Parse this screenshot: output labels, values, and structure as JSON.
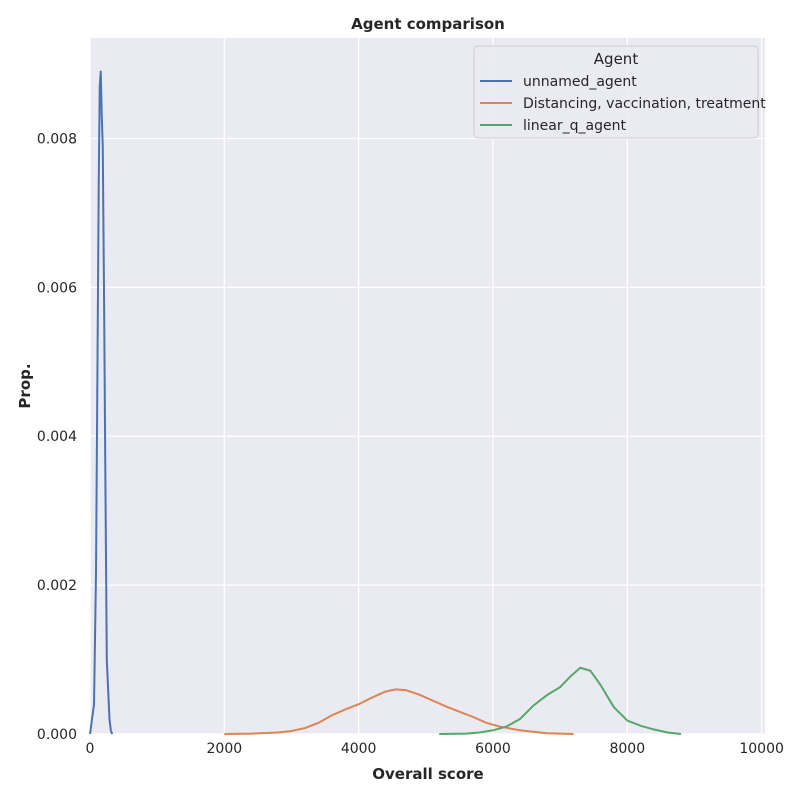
{
  "chart_data": {
    "type": "line",
    "title": "Agent comparison",
    "xlabel": "Overall score",
    "ylabel": "Prop.",
    "xlim": [
      0,
      10050
    ],
    "ylim": [
      0,
      0.00935
    ],
    "x_ticks": [
      0,
      2000,
      4000,
      6000,
      8000,
      10000
    ],
    "x_tick_labels": [
      "0",
      "2000",
      "4000",
      "6000",
      "8000",
      "10000"
    ],
    "y_ticks": [
      0,
      0.002,
      0.004,
      0.006,
      0.008
    ],
    "y_tick_labels": [
      "0.000",
      "0.002",
      "0.004",
      "0.006",
      "0.008"
    ],
    "grid": true,
    "background": "#eaeaf2",
    "legend": {
      "title": "Agent",
      "placement": "top-right"
    },
    "series": [
      {
        "name": "unnamed_agent",
        "color": "#4c72b0",
        "x": [
          0,
          30,
          60,
          90,
          110,
          130,
          145,
          160,
          175,
          190,
          210,
          230,
          250,
          270,
          290,
          310,
          330
        ],
        "y": [
          0,
          0.0002,
          0.0004,
          0.0022,
          0.0048,
          0.0074,
          0.0087,
          0.0089,
          0.0083,
          0.0079,
          0.0058,
          0.0033,
          0.001,
          0.0006,
          0.0002,
          5e-05,
          0
        ]
      },
      {
        "name": "Distancing, vaccination, treatment",
        "color": "#dd8452",
        "x": [
          2000,
          2400,
          2800,
          3000,
          3200,
          3400,
          3600,
          3800,
          4000,
          4200,
          4400,
          4550,
          4700,
          4900,
          5100,
          5300,
          5500,
          5700,
          5900,
          6100,
          6400,
          6800,
          7200
        ],
        "y": [
          0,
          5e-06,
          2e-05,
          4e-05,
          8e-05,
          0.00015,
          0.00025,
          0.00033,
          0.0004,
          0.00049,
          0.00057,
          0.0006,
          0.00059,
          0.00053,
          0.00045,
          0.00037,
          0.0003,
          0.00023,
          0.00015,
          0.0001,
          5e-05,
          1e-05,
          0
        ]
      },
      {
        "name": "linear_q_agent",
        "color": "#55a868",
        "x": [
          5200,
          5600,
          5800,
          6000,
          6200,
          6400,
          6600,
          6800,
          7000,
          7150,
          7300,
          7450,
          7600,
          7800,
          8000,
          8200,
          8400,
          8600,
          8800
        ],
        "y": [
          0,
          5e-06,
          2e-05,
          5e-05,
          0.0001,
          0.0002,
          0.00038,
          0.00052,
          0.00063,
          0.00077,
          0.00089,
          0.00085,
          0.00066,
          0.00036,
          0.00018,
          0.00011,
          6e-05,
          2e-05,
          0
        ]
      }
    ]
  }
}
